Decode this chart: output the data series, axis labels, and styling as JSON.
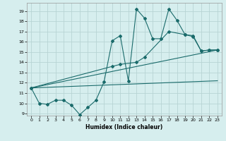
{
  "title": "",
  "xlabel": "Humidex (Indice chaleur)",
  "xlim": [
    -0.5,
    23.5
  ],
  "ylim": [
    8.8,
    19.8
  ],
  "yticks": [
    9,
    10,
    11,
    12,
    13,
    14,
    15,
    16,
    17,
    18,
    19
  ],
  "xticks": [
    0,
    1,
    2,
    3,
    4,
    5,
    6,
    7,
    8,
    9,
    10,
    11,
    12,
    13,
    14,
    15,
    16,
    17,
    18,
    19,
    20,
    21,
    22,
    23
  ],
  "background_color": "#d6eeee",
  "grid_color": "#b8d4d4",
  "line_color": "#1a6b6b",
  "line1_x": [
    0,
    1,
    2,
    3,
    4,
    5,
    6,
    7,
    8,
    9,
    10,
    11,
    12,
    13,
    14,
    15,
    16,
    17,
    18,
    19,
    20,
    21,
    22,
    23
  ],
  "line1_y": [
    11.5,
    10.0,
    9.9,
    10.3,
    10.3,
    9.8,
    8.9,
    9.6,
    10.3,
    12.1,
    16.1,
    16.6,
    12.2,
    19.2,
    18.3,
    16.3,
    16.3,
    19.2,
    18.1,
    16.7,
    16.5,
    15.1,
    15.2,
    15.2
  ],
  "line2_x": [
    0,
    10,
    11,
    13,
    14,
    17,
    19,
    20,
    21,
    22,
    23
  ],
  "line2_y": [
    11.5,
    13.6,
    13.8,
    14.0,
    14.5,
    17.0,
    16.7,
    16.6,
    15.1,
    15.2,
    15.2
  ],
  "line3_x": [
    0,
    23
  ],
  "line3_y": [
    11.5,
    15.2
  ],
  "line4_x": [
    0,
    23
  ],
  "line4_y": [
    11.5,
    12.2
  ]
}
